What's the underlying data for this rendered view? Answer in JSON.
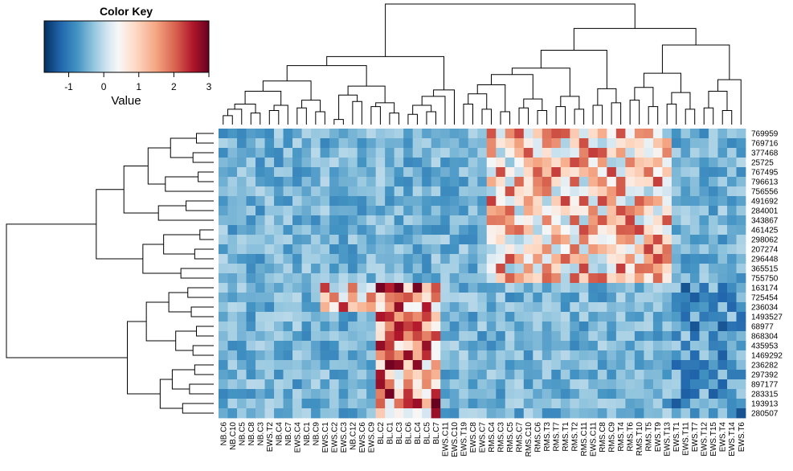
{
  "chart_data": {
    "type": "heatmap",
    "title": "",
    "xlabel": "",
    "ylabel": "",
    "color_key": {
      "title": "Color Key",
      "label": "Value",
      "ticks": [
        -1,
        0,
        1,
        2,
        3
      ],
      "range": [
        -1.7,
        3.0
      ],
      "colors": [
        "#053061",
        "#2166ac",
        "#4393c3",
        "#92c5de",
        "#d1e5f0",
        "#f7f7f7",
        "#fddbc7",
        "#f4a582",
        "#d6604d",
        "#b2182b",
        "#67001f"
      ]
    },
    "rows": [
      "769959",
      "769716",
      "377468",
      "25725",
      "767495",
      "796613",
      "756556",
      "491692",
      "284001",
      "343867",
      "461425",
      "298062",
      "207274",
      "296448",
      "365515",
      "755750",
      "163174",
      "725454",
      "236034",
      "1493527",
      "68977",
      "868304",
      "435953",
      "1469292",
      "236282",
      "297392",
      "897177",
      "283315",
      "193913",
      "280507"
    ],
    "columns": [
      "NB.C6",
      "NB.C10",
      "NB.C5",
      "NB.C8",
      "NB.C3",
      "EWS.T2",
      "NB.C4",
      "NB.C7",
      "EWS.C4",
      "NB.C1",
      "NB.C9",
      "EWS.C1",
      "EWS.C2",
      "EWS.C3",
      "NB.C12",
      "EWS.C6",
      "EWS.C9",
      "BL.C2",
      "BL.C1",
      "BL.C3",
      "BL.C6",
      "BL.C4",
      "BL.C5",
      "BL.C7",
      "EWS.C11",
      "EWS.C10",
      "EWS.T19",
      "EWS.C8",
      "EWS.C7",
      "RMS.C4",
      "RMS.C3",
      "RMS.C5",
      "RMS.C7",
      "RMS.C10",
      "RMS.C6",
      "RMS.T3",
      "RMS.T7",
      "RMS.T1",
      "RMS.T2",
      "RMS.C11",
      "EWS.C11",
      "RMS.C8",
      "RMS.C9",
      "RMS.T4",
      "RMS.T6",
      "RMS.T10",
      "RMS.T5",
      "EWS.T9",
      "EWS.T13",
      "EWS.T1",
      "EWS.T11",
      "EWS.T7",
      "EWS.T12",
      "EWS.T15",
      "EWS.T4",
      "EWS.T14",
      "EWS.T6"
    ],
    "matrix_note": "Cell values rows x columns on the color-key scale",
    "row_dendrogram": [
      [
        0,
        1,
        1.0
      ],
      [
        2,
        3,
        1.2
      ],
      [
        30,
        31,
        2.5
      ],
      [
        4,
        5,
        0.9
      ],
      [
        33,
        6,
        2.8
      ],
      [
        7,
        8,
        1.6
      ],
      [
        35,
        9,
        3.2
      ],
      [
        32,
        34,
        3.8
      ],
      [
        36,
        37,
        5.2
      ],
      [
        10,
        11,
        0.8
      ],
      [
        12,
        13,
        1.1
      ],
      [
        39,
        40,
        2.9
      ],
      [
        14,
        15,
        1.9
      ],
      [
        41,
        42,
        4.1
      ],
      [
        38,
        43,
        6.8
      ],
      [
        16,
        17,
        1.5
      ],
      [
        18,
        19,
        1.3
      ],
      [
        45,
        46,
        2.6
      ],
      [
        20,
        21,
        1.0
      ],
      [
        22,
        23,
        1.2
      ],
      [
        48,
        49,
        2.2
      ],
      [
        47,
        50,
        3.9
      ],
      [
        24,
        25,
        1.1
      ],
      [
        26,
        27,
        1.4
      ],
      [
        52,
        53,
        2.4
      ],
      [
        28,
        29,
        1.8
      ],
      [
        54,
        55,
        3.1
      ],
      [
        51,
        56,
        5.0
      ],
      [
        44,
        57,
        12.0
      ]
    ],
    "col_dendrogram": [
      [
        0,
        1,
        0.7
      ],
      [
        57,
        2,
        1.2
      ],
      [
        3,
        4,
        0.9
      ],
      [
        58,
        59,
        1.6
      ],
      [
        5,
        6,
        1.1
      ],
      [
        61,
        7,
        1.5
      ],
      [
        60,
        62,
        2.6
      ],
      [
        8,
        9,
        1.3
      ],
      [
        10,
        11,
        1.0
      ],
      [
        64,
        65,
        1.9
      ],
      [
        63,
        66,
        3.4
      ],
      [
        12,
        13,
        0.4
      ],
      [
        14,
        15,
        1.8
      ],
      [
        68,
        69,
        2.3
      ],
      [
        16,
        17,
        1.4
      ],
      [
        18,
        19,
        0.9
      ],
      [
        71,
        72,
        1.7
      ],
      [
        70,
        73,
        3.0
      ],
      [
        67,
        74,
        4.6
      ],
      [
        20,
        21,
        0.8
      ],
      [
        22,
        23,
        1.0
      ],
      [
        76,
        77,
        1.5
      ],
      [
        78,
        24,
        2.2
      ],
      [
        79,
        25,
        2.7
      ],
      [
        75,
        80,
        5.3
      ],
      [
        26,
        27,
        1.6
      ],
      [
        28,
        29,
        1.2
      ],
      [
        82,
        83,
        2.4
      ],
      [
        30,
        31,
        1.0
      ],
      [
        84,
        85,
        3.1
      ],
      [
        32,
        33,
        1.3
      ],
      [
        34,
        35,
        1.1
      ],
      [
        87,
        88,
        2.0
      ],
      [
        86,
        89,
        3.9
      ],
      [
        36,
        37,
        1.4
      ],
      [
        38,
        39,
        1.2
      ],
      [
        91,
        92,
        2.2
      ],
      [
        90,
        93,
        4.4
      ],
      [
        40,
        41,
        1.5
      ],
      [
        42,
        43,
        1.7
      ],
      [
        95,
        96,
        2.8
      ],
      [
        94,
        97,
        5.8
      ],
      [
        44,
        45,
        1.9
      ],
      [
        46,
        47,
        1.4
      ],
      [
        99,
        100,
        2.9
      ],
      [
        48,
        49,
        1.6
      ],
      [
        50,
        51,
        1.2
      ],
      [
        102,
        103,
        2.5
      ],
      [
        101,
        104,
        4.0
      ],
      [
        52,
        53,
        1.3
      ],
      [
        54,
        55,
        1.1
      ],
      [
        106,
        107,
        2.6
      ],
      [
        108,
        56,
        3.5
      ],
      [
        105,
        109,
        6.2
      ],
      [
        98,
        110,
        7.5
      ],
      [
        81,
        111,
        9.4
      ]
    ]
  }
}
